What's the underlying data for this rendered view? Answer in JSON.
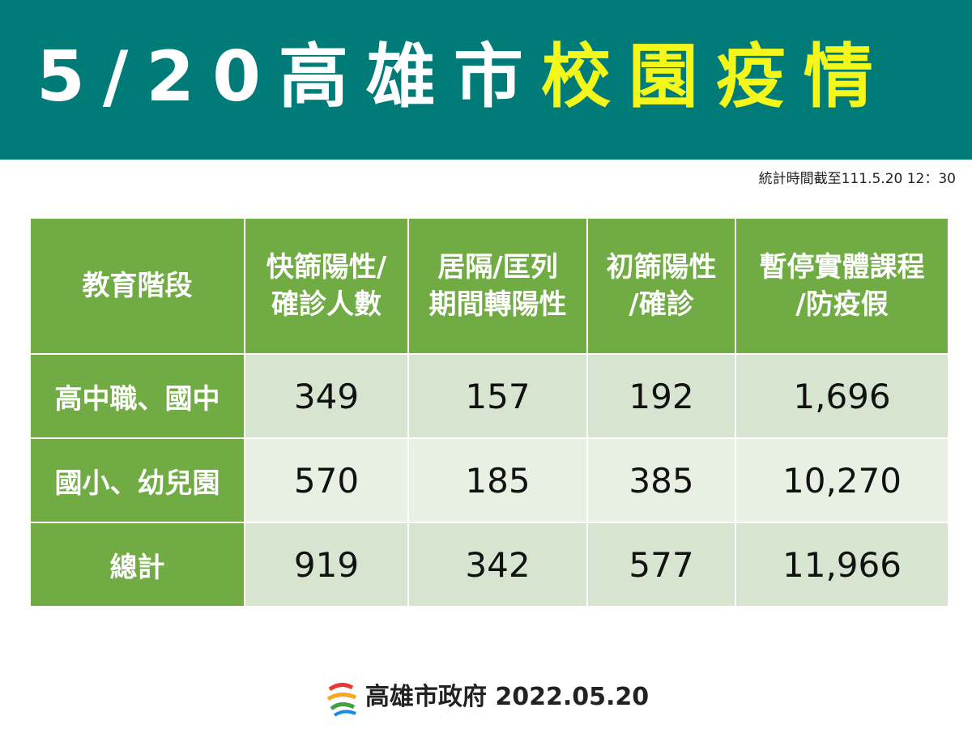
{
  "header": {
    "title_main": "5/20高雄市",
    "title_highlight": "校園疫情"
  },
  "note": "統計時間截至111.5.20 12：30",
  "table": {
    "header": [
      [
        "教育階段"
      ],
      [
        "快篩陽性/",
        "確診人數"
      ],
      [
        "居隔/匡列",
        "期間轉陽性"
      ],
      [
        "初篩陽性",
        "/確診"
      ],
      [
        "暫停實體課程",
        "/防疫假"
      ]
    ],
    "rows": [
      [
        "高中職、國中",
        "349",
        "157",
        "192",
        "1,696"
      ],
      [
        "國小、幼兒園",
        "570",
        "185",
        "385",
        "10,270"
      ],
      [
        "總計",
        "919",
        "342",
        "577",
        "11,966"
      ]
    ]
  },
  "footer": {
    "org": "高雄市政府",
    "date": "2022.05.20"
  }
}
